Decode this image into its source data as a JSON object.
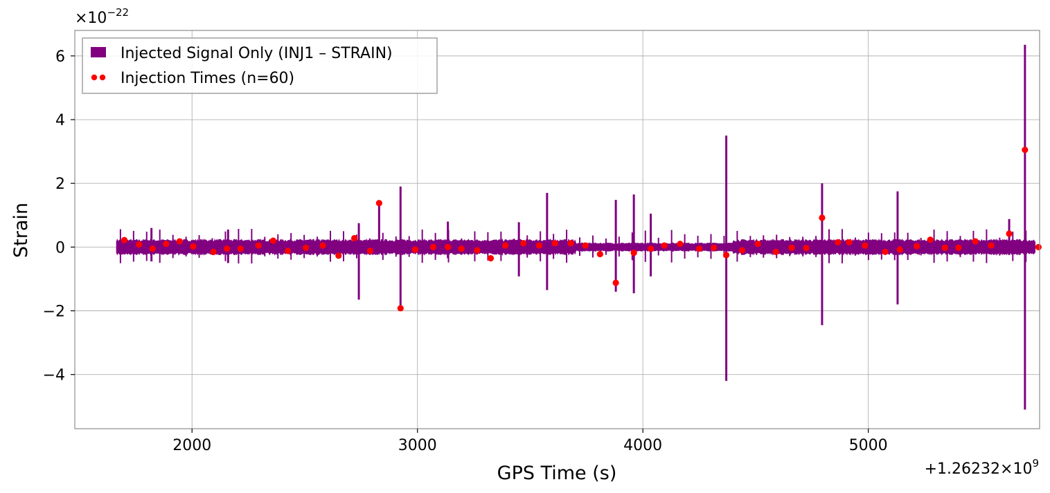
{
  "chart_data": {
    "type": "line",
    "title": "",
    "xlabel": "GPS Time (s)",
    "ylabel": "Strain",
    "x_offset_text": "+1.26232×10",
    "x_offset_exp": "9",
    "y_scale_text": "×10",
    "y_scale_exp": "−22",
    "xlim": [
      1480,
      5760
    ],
    "ylim": [
      -5.7,
      6.8
    ],
    "x_ticks": [
      2000,
      3000,
      4000,
      5000
    ],
    "x_tick_labels": [
      "2000",
      "3000",
      "4000",
      "5000"
    ],
    "y_ticks": [
      -4,
      -2,
      0,
      2,
      4,
      6
    ],
    "y_tick_labels": [
      "−4",
      "−2",
      "0",
      "2",
      "4",
      "6"
    ],
    "grid": true,
    "legend_position": "top-left",
    "series": [
      {
        "name": "Injected Signal Only (INJ1 – STRAIN)",
        "color": "#800080",
        "style": "line",
        "x_range": [
          1665,
          5740
        ],
        "band_amplitude": 0.22,
        "spikes": [
          {
            "x": 1820,
            "y_max": 0.6,
            "y_min": -0.45
          },
          {
            "x": 2160,
            "y_max": 0.55,
            "y_min": -0.5
          },
          {
            "x": 2740,
            "y_max": 0.75,
            "y_min": -1.65
          },
          {
            "x": 2830,
            "y_max": 1.45,
            "y_min": -0.2
          },
          {
            "x": 2925,
            "y_max": 1.9,
            "y_min": -1.95
          },
          {
            "x": 3135,
            "y_max": 0.8,
            "y_min": -0.35
          },
          {
            "x": 3450,
            "y_max": 0.78,
            "y_min": -0.92
          },
          {
            "x": 3575,
            "y_max": 1.7,
            "y_min": -1.35
          },
          {
            "x": 3880,
            "y_max": 1.48,
            "y_min": -1.4
          },
          {
            "x": 3960,
            "y_max": 1.65,
            "y_min": -1.45
          },
          {
            "x": 4035,
            "y_max": 1.05,
            "y_min": -0.92
          },
          {
            "x": 4370,
            "y_max": 3.5,
            "y_min": -4.2
          },
          {
            "x": 4795,
            "y_max": 2.0,
            "y_min": -2.45
          },
          {
            "x": 5130,
            "y_max": 1.75,
            "y_min": -1.8
          },
          {
            "x": 5625,
            "y_max": 0.88,
            "y_min": -0.25
          },
          {
            "x": 5695,
            "y_max": 6.35,
            "y_min": -5.1
          }
        ]
      },
      {
        "name": "Injection Times (n=60)",
        "color": "#ff0000",
        "style": "scatter",
        "x": [
          1700,
          1765,
          1825,
          1885,
          1945,
          2005,
          2095,
          2155,
          2215,
          2295,
          2360,
          2425,
          2505,
          2580,
          2650,
          2720,
          2790,
          2830,
          2925,
          2990,
          3070,
          3135,
          3195,
          3265,
          3325,
          3390,
          3470,
          3540,
          3610,
          3680,
          3745,
          3810,
          3880,
          3960,
          4035,
          4095,
          4165,
          4250,
          4315,
          4370,
          4440,
          4510,
          4590,
          4660,
          4725,
          4795,
          4865,
          4915,
          4985,
          5075,
          5140,
          5215,
          5275,
          5340,
          5400,
          5475,
          5545,
          5625,
          5695,
          5755
        ],
        "y": [
          0.22,
          0.08,
          -0.05,
          0.1,
          0.18,
          0.02,
          -0.15,
          -0.05,
          -0.05,
          0.05,
          0.2,
          -0.12,
          -0.02,
          0.05,
          -0.27,
          0.28,
          -0.12,
          1.38,
          -1.92,
          -0.08,
          0.0,
          0.0,
          -0.05,
          -0.1,
          -0.35,
          0.05,
          0.12,
          0.05,
          0.12,
          0.12,
          0.05,
          -0.22,
          -1.12,
          -0.18,
          -0.05,
          0.05,
          0.1,
          -0.05,
          -0.02,
          -0.25,
          -0.1,
          0.1,
          -0.15,
          -0.02,
          -0.03,
          0.92,
          0.15,
          0.15,
          0.05,
          -0.15,
          -0.08,
          0.03,
          0.23,
          -0.02,
          -0.02,
          0.18,
          0.05,
          0.42,
          3.05,
          0.0
        ]
      }
    ]
  }
}
